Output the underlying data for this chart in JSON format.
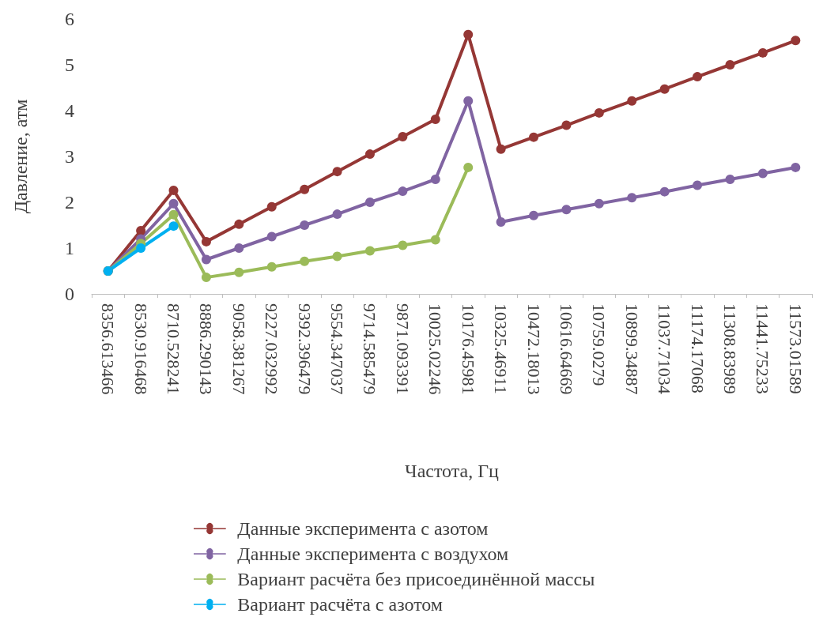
{
  "chart_data": {
    "type": "line",
    "xlabel": "Частота, Гц",
    "ylabel": "Давление, атм",
    "categories": [
      "8356.613466",
      "8530.916468",
      "8710.528241",
      "8886.290143",
      "9058.381267",
      "9227.032992",
      "9392.396479",
      "9554.347037",
      "9714.585479",
      "9871.093391",
      "10025.02246",
      "10176.45981",
      "10325.46911",
      "10472.18013",
      "10616.64669",
      "10759.0279",
      "10899.34887",
      "11037.71034",
      "11174.17068",
      "11308.83989",
      "11441.75233",
      "11573.01589"
    ],
    "series": [
      {
        "name": "Данные эксперимента с азотом",
        "color": "#953735",
        "values": [
          0.5,
          1.38,
          2.26,
          1.14,
          1.52,
          1.9,
          2.28,
          2.67,
          3.05,
          3.43,
          3.81,
          5.66,
          3.16,
          3.42,
          3.68,
          3.95,
          4.21,
          4.47,
          4.74,
          5.0,
          5.26,
          5.53
        ]
      },
      {
        "name": "Данные эксперимента с воздухом",
        "color": "#8064a2",
        "values": [
          0.5,
          1.2,
          1.97,
          0.75,
          1.0,
          1.25,
          1.5,
          1.74,
          2.0,
          2.24,
          2.5,
          4.21,
          1.57,
          1.71,
          1.84,
          1.97,
          2.1,
          2.23,
          2.37,
          2.5,
          2.63,
          2.76
        ]
      },
      {
        "name": "Вариант расчёта без присоединённой массы",
        "color": "#9bbb59",
        "values": [
          0.5,
          1.1,
          1.73,
          0.36,
          0.47,
          0.59,
          0.71,
          0.82,
          0.94,
          1.06,
          1.18,
          2.76,
          null,
          null,
          null,
          null,
          null,
          null,
          null,
          null,
          null,
          null
        ]
      },
      {
        "name": "Вариант расчёта с азотом",
        "color": "#00b0f0",
        "values": [
          0.5,
          1.0,
          1.48,
          null,
          null,
          null,
          null,
          null,
          null,
          null,
          null,
          null,
          null,
          null,
          null,
          null,
          null,
          null,
          null,
          null,
          null,
          null
        ]
      }
    ],
    "ylim": [
      0,
      6
    ],
    "yticks": [
      0,
      1,
      2,
      3,
      4,
      5,
      6
    ],
    "grid": false,
    "legend": "bottom",
    "marker": "circle",
    "line_style": "solid"
  }
}
